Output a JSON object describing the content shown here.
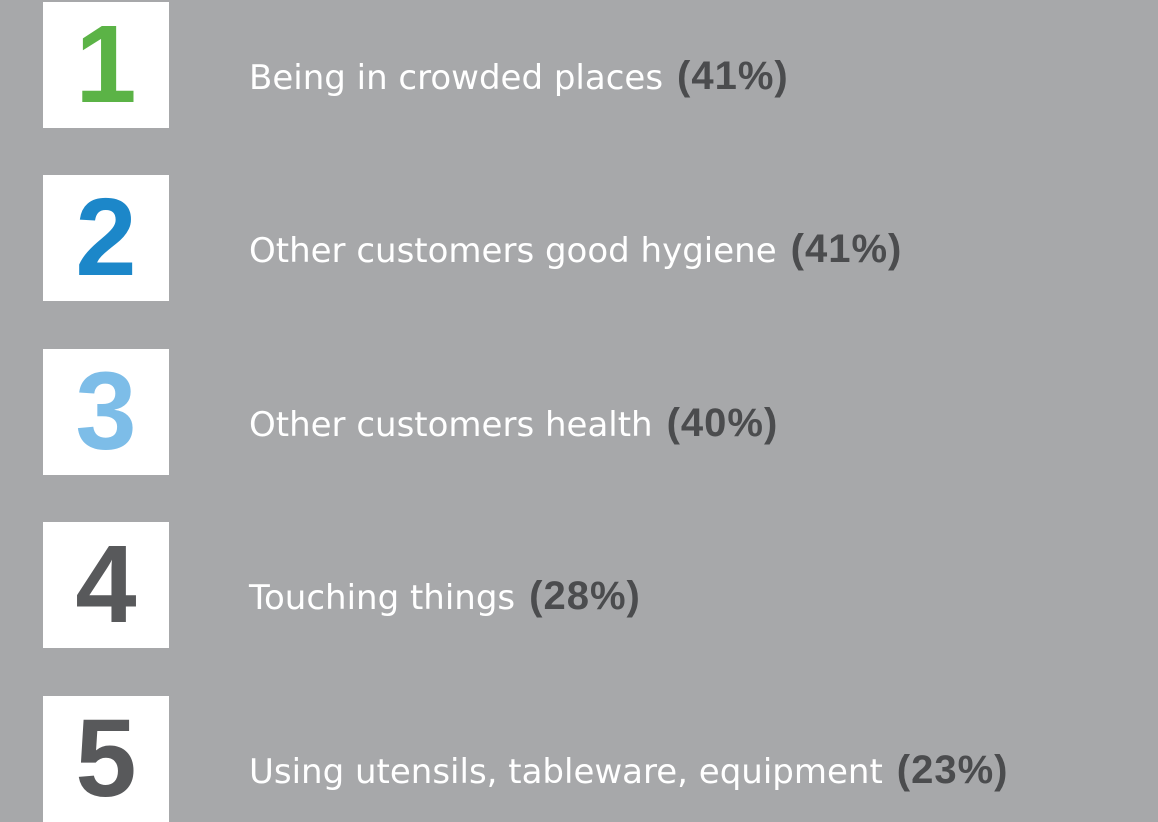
{
  "items": [
    {
      "rank": "1",
      "label": "Being in crowded places",
      "percent": "(41%)"
    },
    {
      "rank": "2",
      "label": "Other customers good hygiene",
      "percent": "(41%)"
    },
    {
      "rank": "3",
      "label": "Other customers health",
      "percent": "(40%)"
    },
    {
      "rank": "4",
      "label": "Touching things",
      "percent": "(28%)"
    },
    {
      "rank": "5",
      "label": "Using utensils, tableware, equipment",
      "percent": "(23%)"
    }
  ]
}
